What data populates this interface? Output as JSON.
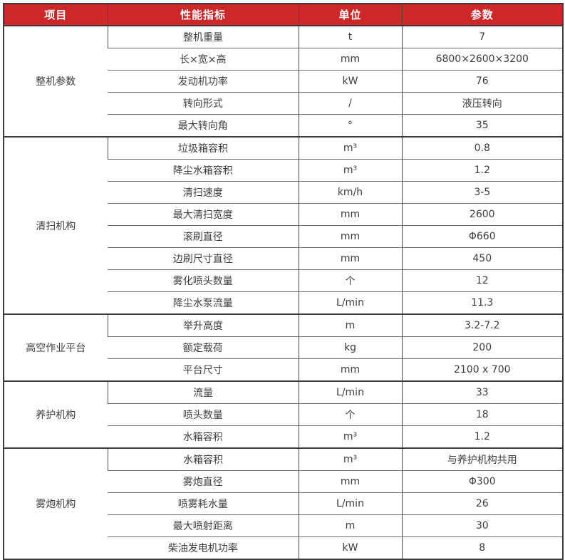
{
  "table": {
    "columns": [
      "项目",
      "性能指标",
      "单位",
      "参数"
    ],
    "groups": [
      {
        "category": "整机参数",
        "rows": [
          {
            "indicator": "整机重量",
            "unit": "t",
            "value": "7"
          },
          {
            "indicator": "长×宽×高",
            "unit": "mm",
            "value": "6800×2600×3200"
          },
          {
            "indicator": "发动机功率",
            "unit": "kW",
            "value": "76"
          },
          {
            "indicator": "转向形式",
            "unit": "/",
            "value": "液压转向"
          },
          {
            "indicator": "最大转向角",
            "unit": "°",
            "value": "35"
          }
        ]
      },
      {
        "category": "清扫机构",
        "rows": [
          {
            "indicator": "垃圾箱容积",
            "unit": "m³",
            "value": "0.8"
          },
          {
            "indicator": "降尘水箱容积",
            "unit": "m³",
            "value": "1.2"
          },
          {
            "indicator": "清扫速度",
            "unit": "km/h",
            "value": "3-5"
          },
          {
            "indicator": "最大清扫宽度",
            "unit": "mm",
            "value": "2600"
          },
          {
            "indicator": "滚刷直径",
            "unit": "mm",
            "value": "Φ660"
          },
          {
            "indicator": "边刷尺寸直径",
            "unit": "mm",
            "value": "450"
          },
          {
            "indicator": "雾化喷头数量",
            "unit": "个",
            "value": "12"
          },
          {
            "indicator": "降尘水泵流量",
            "unit": "L/min",
            "value": "11.3"
          }
        ]
      },
      {
        "category": "高空作业平台",
        "rows": [
          {
            "indicator": "举升高度",
            "unit": "m",
            "value": "3.2-7.2"
          },
          {
            "indicator": "额定载荷",
            "unit": "kg",
            "value": "200"
          },
          {
            "indicator": "平台尺寸",
            "unit": "mm",
            "value": "2100 x 700"
          }
        ]
      },
      {
        "category": "养护机构",
        "rows": [
          {
            "indicator": "流量",
            "unit": "L/min",
            "value": "33"
          },
          {
            "indicator": "喷头数量",
            "unit": "个",
            "value": "18"
          },
          {
            "indicator": "水箱容积",
            "unit": "m³",
            "value": "1.2"
          }
        ]
      },
      {
        "category": "雾炮机构",
        "rows": [
          {
            "indicator": "水箱容积",
            "unit": "m³",
            "value": "与养护机构共用"
          },
          {
            "indicator": "雾炮直径",
            "unit": "mm",
            "value": "Φ300"
          },
          {
            "indicator": "喷雾耗水量",
            "unit": "L/min",
            "value": "26"
          },
          {
            "indicator": "最大喷射距离",
            "unit": "m",
            "value": "30"
          },
          {
            "indicator": "柴油发电机功率",
            "unit": "kW",
            "value": "8"
          }
        ]
      }
    ],
    "colors": {
      "header_bg": "#CE2728",
      "header_text": "#FFFFFF",
      "body_text": "#3D3D3D",
      "frame_border": "#3B3B3B",
      "row_border": "#6E6E6E"
    }
  }
}
